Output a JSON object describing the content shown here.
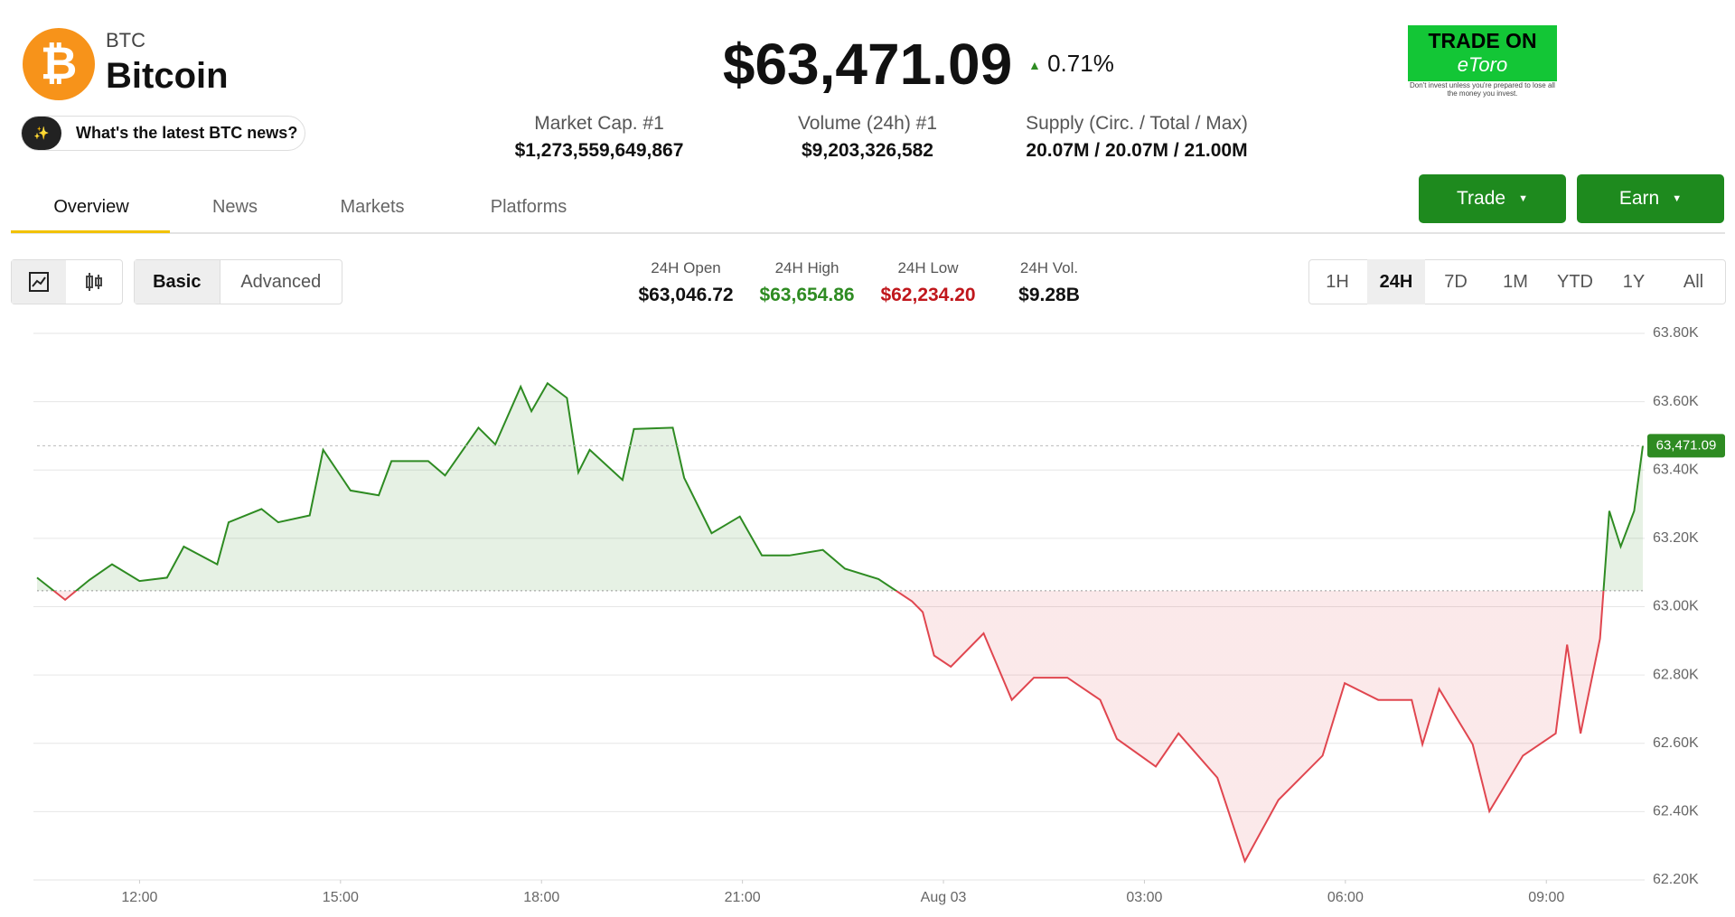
{
  "header": {
    "symbol": "BTC",
    "name": "Bitcoin",
    "price": "$63,471.09",
    "change": "0.71%",
    "news_prompt": "What's the latest BTC news?"
  },
  "stats": [
    {
      "label": "Market Cap. #1",
      "value": "$1,273,559,649,867"
    },
    {
      "label": "Volume (24h) #1",
      "value": "$9,203,326,582"
    },
    {
      "label": "Supply (Circ. / Total / Max)",
      "value": "20.07M / 20.07M / 21.00M"
    }
  ],
  "ad": {
    "title": "TRADE ON",
    "brand": "eToro",
    "disclaimer": "Don't invest unless you're prepared to lose all the money you invest."
  },
  "tabs": [
    "Overview",
    "News",
    "Markets",
    "Platforms"
  ],
  "buttons": [
    "Trade",
    "Earn"
  ],
  "modes": [
    "Basic",
    "Advanced"
  ],
  "ohlc": [
    {
      "label": "24H Open",
      "value": "$63,046.72"
    },
    {
      "label": "24H High",
      "value": "$63,654.86"
    },
    {
      "label": "24H Low",
      "value": "$62,234.20"
    },
    {
      "label": "24H Vol.",
      "value": "$9.28B"
    }
  ],
  "ranges": [
    "1H",
    "24H",
    "7D",
    "1M",
    "YTD",
    "1Y",
    "All"
  ],
  "chart_data": {
    "type": "line",
    "baseline": 63046.72,
    "up_color": "#2e8b22",
    "down_color": "#e0464f",
    "x": [
      10.47,
      10.89,
      11.25,
      11.59,
      12.0,
      12.41,
      12.66,
      13.16,
      13.33,
      13.82,
      14.07,
      14.54,
      14.74,
      15.15,
      15.57,
      15.76,
      16.31,
      16.56,
      17.06,
      17.31,
      17.69,
      17.85,
      18.09,
      18.38,
      18.55,
      18.72,
      19.21,
      19.38,
      19.96,
      20.13,
      20.54,
      20.96,
      21.29,
      21.7,
      22.2,
      22.53,
      23.03,
      23.53,
      23.69,
      23.86,
      24.11,
      24.6,
      25.02,
      25.35,
      25.85,
      26.34,
      26.59,
      27.17,
      27.51,
      28.09,
      28.5,
      29.0,
      29.66,
      29.99,
      30.49,
      30.99,
      31.15,
      31.4,
      31.9,
      32.15,
      32.65,
      33.14,
      33.31,
      33.51,
      33.8,
      33.94,
      34.11,
      34.31,
      34.44
    ],
    "values": [
      63085,
      63020,
      63078,
      63124,
      63075,
      63085,
      63176,
      63124,
      63247,
      63286,
      63247,
      63267,
      63459,
      63340,
      63326,
      63426,
      63426,
      63384,
      63524,
      63475,
      63644,
      63572,
      63654,
      63611,
      63393,
      63459,
      63371,
      63520,
      63524,
      63377,
      63215,
      63264,
      63150,
      63150,
      63166,
      63111,
      63081,
      63016,
      62984,
      62857,
      62824,
      62922,
      62727,
      62792,
      62792,
      62727,
      62613,
      62532,
      62629,
      62499,
      62255,
      62434,
      62564,
      62776,
      62727,
      62727,
      62597,
      62759,
      62597,
      62401,
      62564,
      62629,
      62889,
      62629,
      62906,
      63280,
      63176,
      63280,
      63471.09
    ],
    "last_label": "63,471.09",
    "xlim": [
      10.47,
      34.44
    ],
    "xticks": [
      {
        "value": 12,
        "label": "12:00"
      },
      {
        "value": 15,
        "label": "15:00"
      },
      {
        "value": 18,
        "label": "18:00"
      },
      {
        "value": 21,
        "label": "21:00"
      },
      {
        "value": 24,
        "label": "Aug 03"
      },
      {
        "value": 27,
        "label": "03:00"
      },
      {
        "value": 30,
        "label": "06:00"
      },
      {
        "value": 33,
        "label": "09:00"
      }
    ],
    "ylim": [
      62200,
      63800
    ],
    "yticks": [
      {
        "value": 62200,
        "label": "62.20K"
      },
      {
        "value": 62400,
        "label": "62.40K"
      },
      {
        "value": 62600,
        "label": "62.60K"
      },
      {
        "value": 62800,
        "label": "62.80K"
      },
      {
        "value": 63000,
        "label": "63.00K"
      },
      {
        "value": 63200,
        "label": "63.20K"
      },
      {
        "value": 63400,
        "label": "63.40K"
      },
      {
        "value": 63600,
        "label": "63.60K"
      },
      {
        "value": 63800,
        "label": "63.80K"
      }
    ],
    "grid": true
  }
}
